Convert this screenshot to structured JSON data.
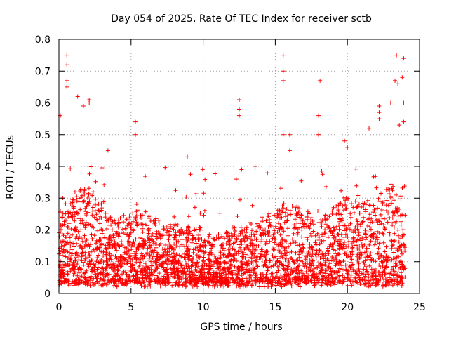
{
  "chart_data": {
    "type": "scatter",
    "title": "Day 054 of 2025, Rate Of TEC Index for receiver sctb",
    "xlabel": "GPS time / hours",
    "ylabel": "ROTI / TECUs",
    "xlim": [
      0,
      25
    ],
    "ylim": [
      0,
      0.8
    ],
    "xticks": [
      "0",
      "5",
      "10",
      "15",
      "20",
      "25"
    ],
    "yticks": [
      "0",
      "0.1",
      "0.2",
      "0.3",
      "0.4",
      "0.5",
      "0.6",
      "0.7",
      "0.8"
    ],
    "grid": true,
    "marker": "+",
    "color": "#ff0000",
    "series": [
      {
        "x_range": [
          0,
          24
        ],
        "typical_range": [
          0.03,
          0.3
        ],
        "outliers": [
          {
            "x": 0.55,
            "y": 0.75
          },
          {
            "x": 0.55,
            "y": 0.72
          },
          {
            "x": 0.55,
            "y": 0.67
          },
          {
            "x": 0.55,
            "y": 0.65
          },
          {
            "x": 1.3,
            "y": 0.62
          },
          {
            "x": 1.7,
            "y": 0.59
          },
          {
            "x": 2.1,
            "y": 0.61
          },
          {
            "x": 2.1,
            "y": 0.6
          },
          {
            "x": 0.1,
            "y": 0.56
          },
          {
            "x": 5.3,
            "y": 0.54
          },
          {
            "x": 5.3,
            "y": 0.5
          },
          {
            "x": 3.4,
            "y": 0.45
          },
          {
            "x": 12.5,
            "y": 0.61
          },
          {
            "x": 12.5,
            "y": 0.58
          },
          {
            "x": 12.5,
            "y": 0.56
          },
          {
            "x": 15.55,
            "y": 0.75
          },
          {
            "x": 15.55,
            "y": 0.7
          },
          {
            "x": 15.55,
            "y": 0.67
          },
          {
            "x": 15.55,
            "y": 0.5
          },
          {
            "x": 18.1,
            "y": 0.67
          },
          {
            "x": 18.0,
            "y": 0.56
          },
          {
            "x": 18.0,
            "y": 0.5
          },
          {
            "x": 21.5,
            "y": 0.52
          },
          {
            "x": 22.2,
            "y": 0.59
          },
          {
            "x": 22.2,
            "y": 0.57
          },
          {
            "x": 22.2,
            "y": 0.55
          },
          {
            "x": 23.4,
            "y": 0.75
          },
          {
            "x": 23.9,
            "y": 0.74
          },
          {
            "x": 23.8,
            "y": 0.68
          },
          {
            "x": 23.3,
            "y": 0.67
          },
          {
            "x": 23.5,
            "y": 0.66
          },
          {
            "x": 23.9,
            "y": 0.6
          },
          {
            "x": 23.0,
            "y": 0.6
          },
          {
            "x": 23.9,
            "y": 0.54
          },
          {
            "x": 23.6,
            "y": 0.53
          },
          {
            "x": 8.9,
            "y": 0.43
          },
          {
            "x": 13.6,
            "y": 0.4
          },
          {
            "x": 16.0,
            "y": 0.5
          },
          {
            "x": 16.0,
            "y": 0.45
          },
          {
            "x": 19.8,
            "y": 0.48
          },
          {
            "x": 20.0,
            "y": 0.46
          }
        ]
      }
    ]
  }
}
